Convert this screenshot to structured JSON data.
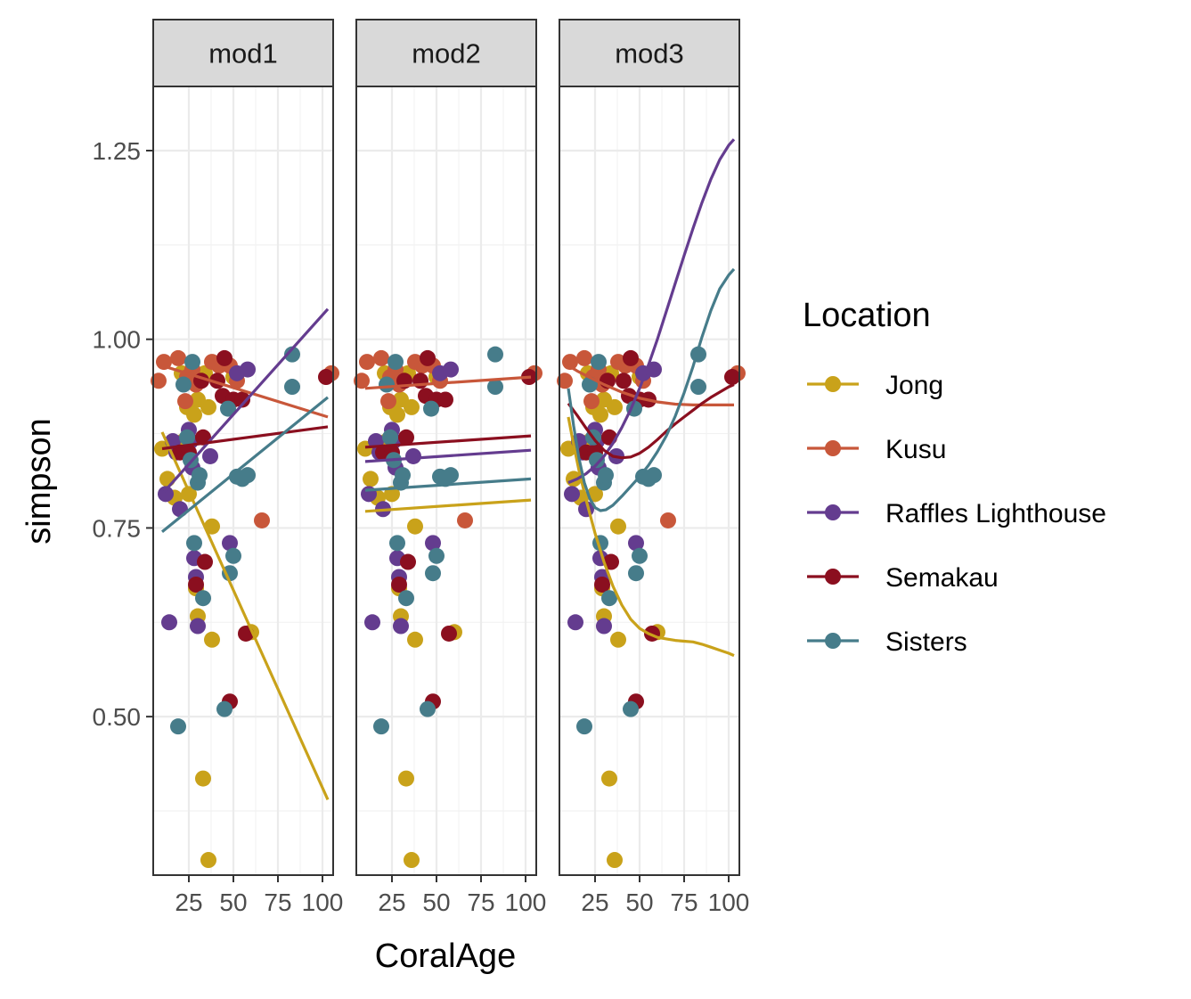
{
  "chart_data": {
    "type": "scatter",
    "xlabel": "CoralAge",
    "ylabel": "simpson",
    "xlim": [
      5,
      106
    ],
    "ylim": [
      0.29,
      1.335
    ],
    "xticks": [
      25,
      50,
      75,
      100
    ],
    "xtick_labels": [
      "25",
      "50",
      "75",
      "100"
    ],
    "yticks": [
      0.5,
      0.75,
      1.0,
      1.25
    ],
    "ytick_labels": [
      "0.50",
      "0.75",
      "1.00",
      "1.25"
    ],
    "grid": true,
    "legend": {
      "title": "Location",
      "position": "right",
      "entries": [
        "Jong",
        "Kusu",
        "Raffles Lighthouse",
        "Semakau",
        "Sisters"
      ]
    },
    "colors": {
      "Jong": "#C9A21A",
      "Kusu": "#C8573A",
      "Raffles Lighthouse": "#643C8F",
      "Semakau": "#8B0F1F",
      "Sisters": "#467C8A"
    },
    "panels": [
      "mod1",
      "mod2",
      "mod3"
    ],
    "points": [
      {
        "location": "Jong",
        "x": 10,
        "y": 0.855
      },
      {
        "location": "Jong",
        "x": 13,
        "y": 0.815
      },
      {
        "location": "Jong",
        "x": 17,
        "y": 0.79
      },
      {
        "location": "Jong",
        "x": 21,
        "y": 0.955
      },
      {
        "location": "Jong",
        "x": 24,
        "y": 0.91
      },
      {
        "location": "Jong",
        "x": 28,
        "y": 0.9
      },
      {
        "location": "Jong",
        "x": 30,
        "y": 0.92
      },
      {
        "location": "Jong",
        "x": 22,
        "y": 0.865
      },
      {
        "location": "Jong",
        "x": 25,
        "y": 0.795
      },
      {
        "location": "Jong",
        "x": 29,
        "y": 0.67
      },
      {
        "location": "Jong",
        "x": 30,
        "y": 0.633
      },
      {
        "location": "Jong",
        "x": 34,
        "y": 0.955
      },
      {
        "location": "Jong",
        "x": 36,
        "y": 0.91
      },
      {
        "location": "Jong",
        "x": 38,
        "y": 0.752
      },
      {
        "location": "Jong",
        "x": 38,
        "y": 0.602
      },
      {
        "location": "Jong",
        "x": 33,
        "y": 0.418
      },
      {
        "location": "Jong",
        "x": 36,
        "y": 0.31
      },
      {
        "location": "Jong",
        "x": 50,
        "y": 0.95
      },
      {
        "location": "Jong",
        "x": 60,
        "y": 0.612
      },
      {
        "location": "Kusu",
        "x": 8,
        "y": 0.945
      },
      {
        "location": "Kusu",
        "x": 11,
        "y": 0.97
      },
      {
        "location": "Kusu",
        "x": 19,
        "y": 0.975
      },
      {
        "location": "Kusu",
        "x": 23,
        "y": 0.918
      },
      {
        "location": "Kusu",
        "x": 24,
        "y": 0.95
      },
      {
        "location": "Kusu",
        "x": 27,
        "y": 0.96
      },
      {
        "location": "Kusu",
        "x": 29,
        "y": 0.94
      },
      {
        "location": "Kusu",
        "x": 38,
        "y": 0.97
      },
      {
        "location": "Kusu",
        "x": 42,
        "y": 0.965
      },
      {
        "location": "Kusu",
        "x": 48,
        "y": 0.965
      },
      {
        "location": "Kusu",
        "x": 52,
        "y": 0.945
      },
      {
        "location": "Kusu",
        "x": 66,
        "y": 0.76
      },
      {
        "location": "Kusu",
        "x": 105,
        "y": 0.955
      },
      {
        "location": "Raffles Lighthouse",
        "x": 12,
        "y": 0.795
      },
      {
        "location": "Raffles Lighthouse",
        "x": 14,
        "y": 0.625
      },
      {
        "location": "Raffles Lighthouse",
        "x": 16,
        "y": 0.865
      },
      {
        "location": "Raffles Lighthouse",
        "x": 18,
        "y": 0.85
      },
      {
        "location": "Raffles Lighthouse",
        "x": 20,
        "y": 0.775
      },
      {
        "location": "Raffles Lighthouse",
        "x": 25,
        "y": 0.88
      },
      {
        "location": "Raffles Lighthouse",
        "x": 26,
        "y": 0.865
      },
      {
        "location": "Raffles Lighthouse",
        "x": 27,
        "y": 0.83
      },
      {
        "location": "Raffles Lighthouse",
        "x": 28,
        "y": 0.71
      },
      {
        "location": "Raffles Lighthouse",
        "x": 29,
        "y": 0.685
      },
      {
        "location": "Raffles Lighthouse",
        "x": 30,
        "y": 0.62
      },
      {
        "location": "Raffles Lighthouse",
        "x": 37,
        "y": 0.845
      },
      {
        "location": "Raffles Lighthouse",
        "x": 48,
        "y": 0.73
      },
      {
        "location": "Raffles Lighthouse",
        "x": 52,
        "y": 0.955
      },
      {
        "location": "Raffles Lighthouse",
        "x": 58,
        "y": 0.96
      },
      {
        "location": "Semakau",
        "x": 20,
        "y": 0.85
      },
      {
        "location": "Semakau",
        "x": 25,
        "y": 0.85
      },
      {
        "location": "Semakau",
        "x": 29,
        "y": 0.675
      },
      {
        "location": "Semakau",
        "x": 33,
        "y": 0.87
      },
      {
        "location": "Semakau",
        "x": 34,
        "y": 0.705
      },
      {
        "location": "Semakau",
        "x": 32,
        "y": 0.945
      },
      {
        "location": "Semakau",
        "x": 41,
        "y": 0.945
      },
      {
        "location": "Semakau",
        "x": 44,
        "y": 0.925
      },
      {
        "location": "Semakau",
        "x": 45,
        "y": 0.975
      },
      {
        "location": "Semakau",
        "x": 48,
        "y": 0.52
      },
      {
        "location": "Semakau",
        "x": 50,
        "y": 0.92
      },
      {
        "location": "Semakau",
        "x": 55,
        "y": 0.92
      },
      {
        "location": "Semakau",
        "x": 57,
        "y": 0.61
      },
      {
        "location": "Semakau",
        "x": 102,
        "y": 0.95
      },
      {
        "location": "Sisters",
        "x": 19,
        "y": 0.487
      },
      {
        "location": "Sisters",
        "x": 22,
        "y": 0.94
      },
      {
        "location": "Sisters",
        "x": 24,
        "y": 0.87
      },
      {
        "location": "Sisters",
        "x": 26,
        "y": 0.84
      },
      {
        "location": "Sisters",
        "x": 27,
        "y": 0.97
      },
      {
        "location": "Sisters",
        "x": 28,
        "y": 0.73
      },
      {
        "location": "Sisters",
        "x": 30,
        "y": 0.81
      },
      {
        "location": "Sisters",
        "x": 31,
        "y": 0.82
      },
      {
        "location": "Sisters",
        "x": 33,
        "y": 0.657
      },
      {
        "location": "Sisters",
        "x": 45,
        "y": 0.51
      },
      {
        "location": "Sisters",
        "x": 47,
        "y": 0.908
      },
      {
        "location": "Sisters",
        "x": 48,
        "y": 0.69
      },
      {
        "location": "Sisters",
        "x": 50,
        "y": 0.713
      },
      {
        "location": "Sisters",
        "x": 52,
        "y": 0.818
      },
      {
        "location": "Sisters",
        "x": 55,
        "y": 0.815
      },
      {
        "location": "Sisters",
        "x": 58,
        "y": 0.82
      },
      {
        "location": "Sisters",
        "x": 83,
        "y": 0.98
      },
      {
        "location": "Sisters",
        "x": 83,
        "y": 0.937
      }
    ],
    "fits": {
      "mod1": [
        {
          "location": "Jong",
          "x": [
            10,
            103
          ],
          "y": [
            0.877,
            0.39
          ]
        },
        {
          "location": "Kusu",
          "x": [
            10,
            103
          ],
          "y": [
            0.965,
            0.897
          ]
        },
        {
          "location": "Raffles Lighthouse",
          "x": [
            10,
            103
          ],
          "y": [
            0.795,
            1.04
          ]
        },
        {
          "location": "Semakau",
          "x": [
            10,
            103
          ],
          "y": [
            0.855,
            0.884
          ]
        },
        {
          "location": "Sisters",
          "x": [
            10,
            103
          ],
          "y": [
            0.745,
            0.923
          ]
        }
      ],
      "mod2": [
        {
          "location": "Jong",
          "x": [
            10,
            103
          ],
          "y": [
            0.772,
            0.787
          ]
        },
        {
          "location": "Kusu",
          "x": [
            10,
            103
          ],
          "y": [
            0.935,
            0.95
          ]
        },
        {
          "location": "Raffles Lighthouse",
          "x": [
            10,
            103
          ],
          "y": [
            0.838,
            0.853
          ]
        },
        {
          "location": "Semakau",
          "x": [
            10,
            103
          ],
          "y": [
            0.857,
            0.872
          ]
        },
        {
          "location": "Sisters",
          "x": [
            10,
            103
          ],
          "y": [
            0.8,
            0.815
          ]
        }
      ],
      "mod3": [
        {
          "location": "Jong",
          "x": [
            10,
            13,
            16,
            20,
            25,
            30,
            35,
            40,
            45,
            50,
            55,
            60,
            65,
            70,
            75,
            80,
            85,
            90,
            95,
            100,
            103
          ],
          "y": [
            0.897,
            0.86,
            0.826,
            0.787,
            0.743,
            0.705,
            0.673,
            0.648,
            0.629,
            0.617,
            0.61,
            0.605,
            0.603,
            0.601,
            0.6,
            0.599,
            0.596,
            0.592,
            0.588,
            0.584,
            0.581
          ]
        },
        {
          "location": "Kusu",
          "x": [
            10,
            15,
            20,
            30,
            40,
            50,
            60,
            70,
            80,
            90,
            103
          ],
          "y": [
            0.965,
            0.958,
            0.952,
            0.94,
            0.93,
            0.922,
            0.917,
            0.914,
            0.913,
            0.913,
            0.913
          ]
        },
        {
          "location": "Raffles Lighthouse",
          "x": [
            10,
            15,
            20,
            25,
            30,
            35,
            40,
            45,
            50,
            55,
            60,
            65,
            70,
            75,
            80,
            85,
            90,
            95,
            100,
            103
          ],
          "y": [
            0.81,
            0.815,
            0.822,
            0.832,
            0.845,
            0.862,
            0.883,
            0.907,
            0.935,
            0.966,
            1.0,
            1.037,
            1.074,
            1.111,
            1.147,
            1.181,
            1.212,
            1.238,
            1.257,
            1.265
          ]
        },
        {
          "location": "Semakau",
          "x": [
            10,
            15,
            20,
            25,
            30,
            35,
            40,
            45,
            50,
            55,
            60,
            65,
            70,
            75,
            80,
            85,
            90,
            95,
            100,
            103
          ],
          "y": [
            0.915,
            0.899,
            0.882,
            0.866,
            0.853,
            0.845,
            0.843,
            0.844,
            0.849,
            0.857,
            0.867,
            0.878,
            0.888,
            0.897,
            0.906,
            0.915,
            0.923,
            0.93,
            0.937,
            0.94
          ]
        },
        {
          "location": "Sisters",
          "x": [
            10,
            13,
            16,
            19,
            22,
            25,
            28,
            31,
            35,
            40,
            45,
            50,
            55,
            60,
            65,
            70,
            75,
            80,
            85,
            90,
            95,
            100,
            103
          ],
          "y": [
            0.935,
            0.885,
            0.842,
            0.81,
            0.789,
            0.777,
            0.773,
            0.774,
            0.78,
            0.792,
            0.805,
            0.818,
            0.833,
            0.851,
            0.872,
            0.898,
            0.929,
            0.964,
            1.003,
            1.038,
            1.067,
            1.085,
            1.093
          ]
        }
      ]
    }
  }
}
